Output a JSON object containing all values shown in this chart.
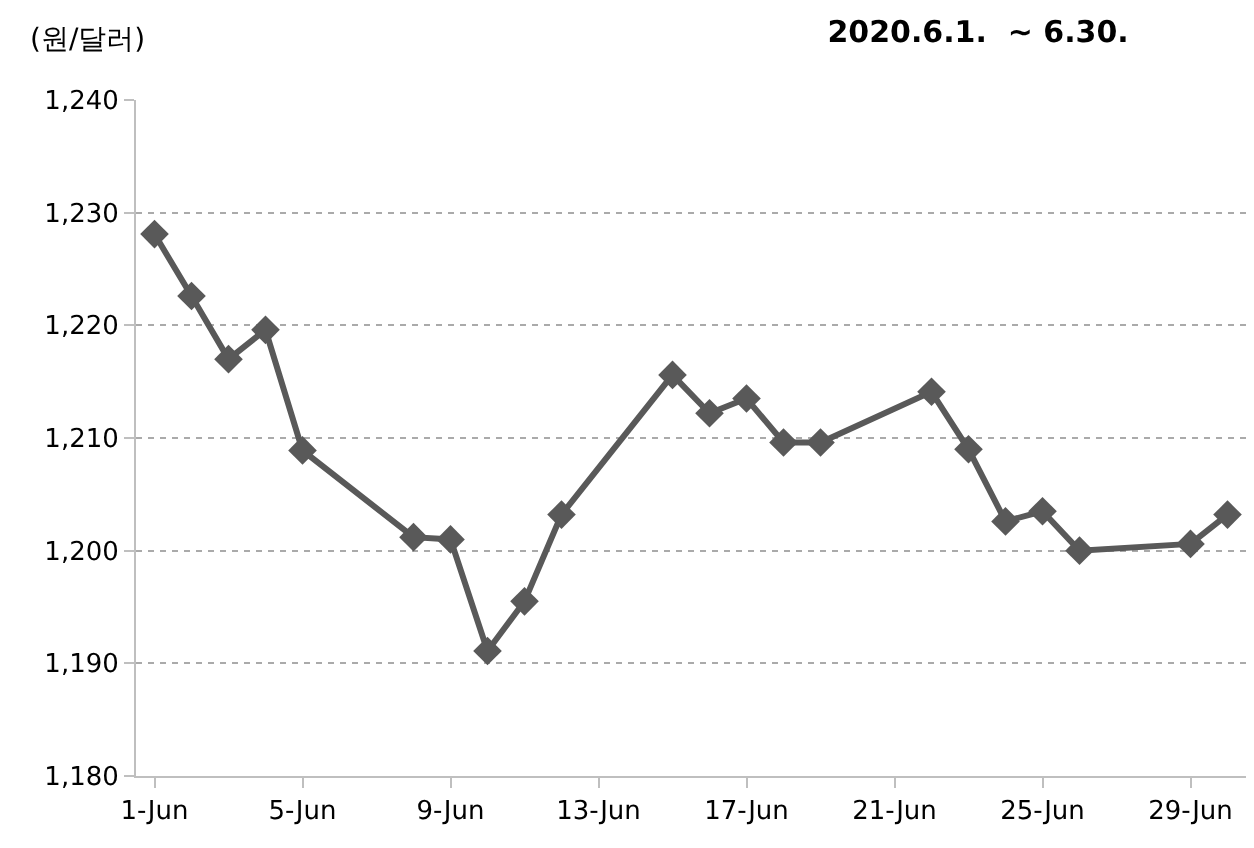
{
  "chart_data": {
    "type": "line",
    "title": "2020.6.1.  ~ 6.30.",
    "ylabel": "(원/달러)",
    "x": [
      "2020-06-01",
      "2020-06-02",
      "2020-06-03",
      "2020-06-04",
      "2020-06-05",
      "2020-06-08",
      "2020-06-09",
      "2020-06-10",
      "2020-06-11",
      "2020-06-12",
      "2020-06-15",
      "2020-06-16",
      "2020-06-17",
      "2020-06-18",
      "2020-06-19",
      "2020-06-22",
      "2020-06-23",
      "2020-06-24",
      "2020-06-25",
      "2020-06-26",
      "2020-06-29",
      "2020-06-30"
    ],
    "series": [
      {
        "color": "#595959",
        "values": [
          1228.1,
          1222.6,
          1217.0,
          1219.6,
          1208.9,
          1201.2,
          1201.0,
          1191.1,
          1195.5,
          1203.2,
          1215.6,
          1212.2,
          1213.5,
          1209.6,
          1209.6,
          1214.1,
          1209.0,
          1202.6,
          1203.5,
          1200.0,
          1200.6,
          1203.2
        ]
      }
    ],
    "xlim": [
      "2020-05-31T12:00",
      "2020-06-30T12:00"
    ],
    "xticks": [
      {
        "value": "2020-06-01",
        "label": "1-Jun"
      },
      {
        "value": "2020-06-05",
        "label": "5-Jun"
      },
      {
        "value": "2020-06-09",
        "label": "9-Jun"
      },
      {
        "value": "2020-06-13",
        "label": "13-Jun"
      },
      {
        "value": "2020-06-17",
        "label": "17-Jun"
      },
      {
        "value": "2020-06-21",
        "label": "21-Jun"
      },
      {
        "value": "2020-06-25",
        "label": "25-Jun"
      },
      {
        "value": "2020-06-29",
        "label": "29-Jun"
      }
    ],
    "ylim": [
      1180,
      1240
    ],
    "yticks": [
      {
        "value": 1180,
        "label": "1,180"
      },
      {
        "value": 1190,
        "label": "1,190"
      },
      {
        "value": 1200,
        "label": "1,200"
      },
      {
        "value": 1210,
        "label": "1,210"
      },
      {
        "value": 1220,
        "label": "1,220"
      },
      {
        "value": 1230,
        "label": "1,230"
      },
      {
        "value": 1240,
        "label": "1,240"
      }
    ],
    "grid": "y",
    "marker": "diamond",
    "line_style": "solid",
    "legend": false
  }
}
